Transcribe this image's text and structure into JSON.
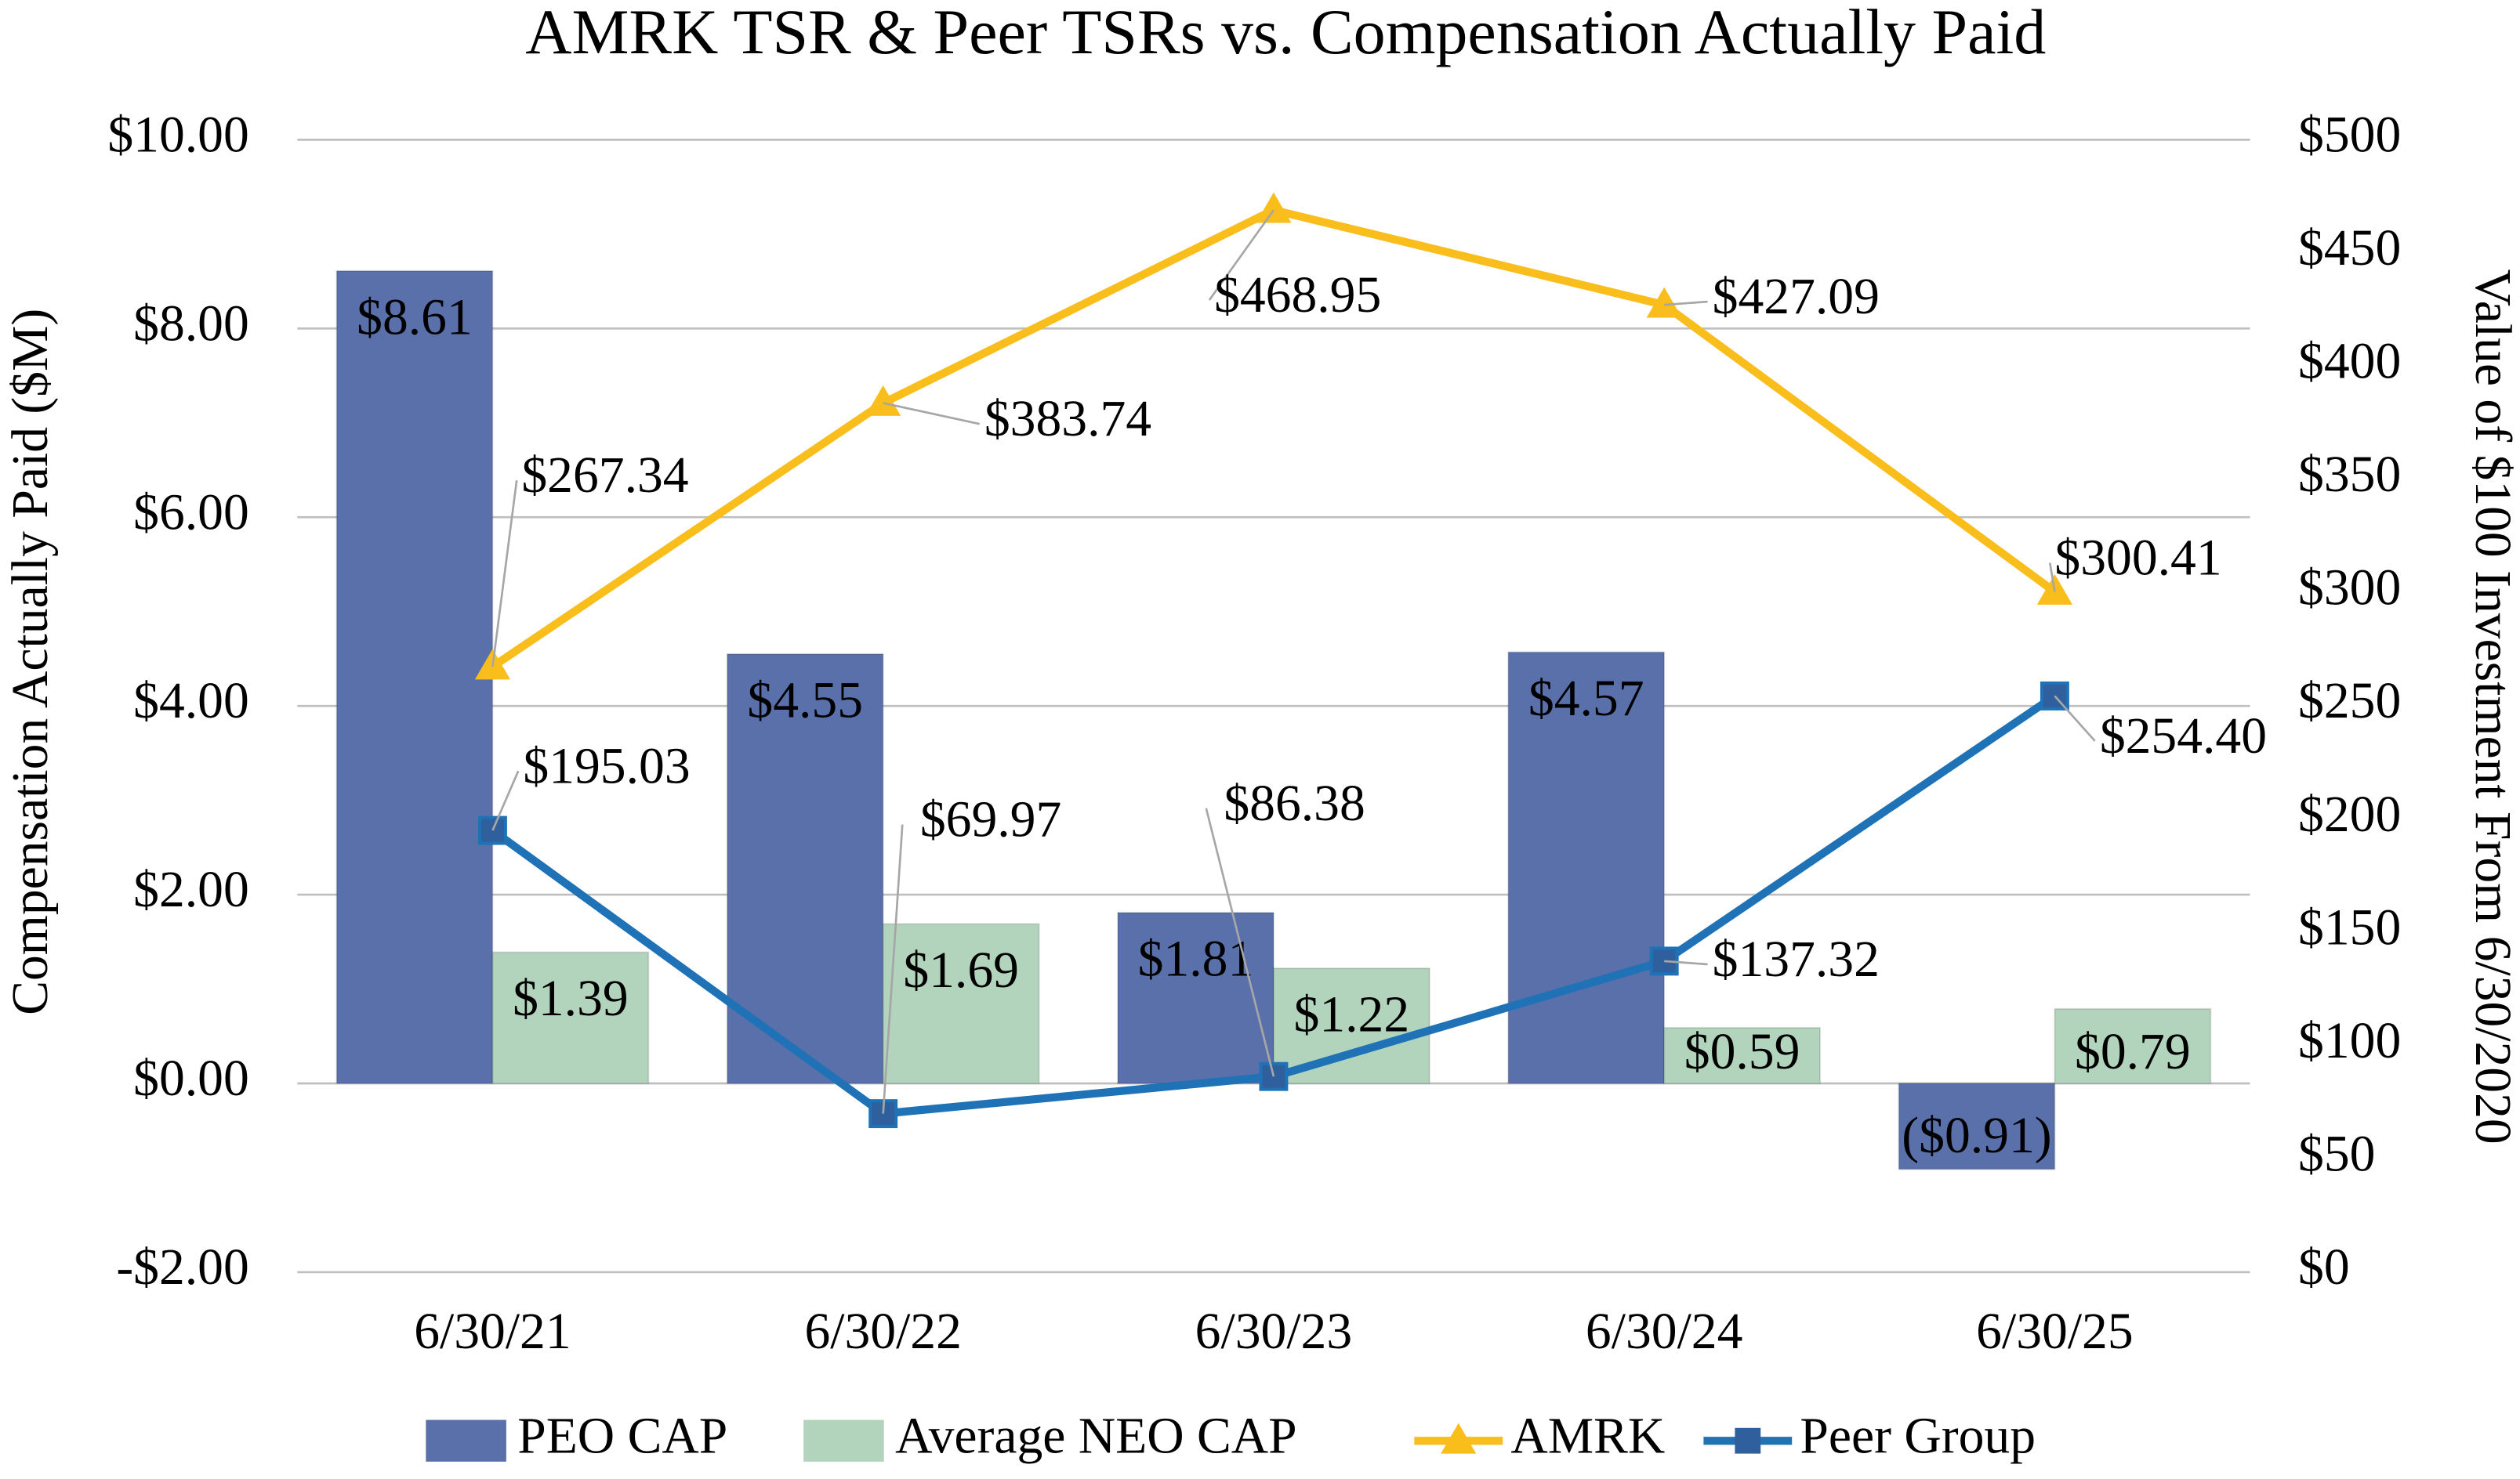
{
  "chart_data": {
    "type": "bar_line",
    "title": "AMRK TSR & Peer TSRs vs. Compensation Actually Paid",
    "ylabel": "Compensation Actually Paid ($M)",
    "y2label": "Value of $100 Investment From 6/30/2020",
    "categories": [
      "6/30/21",
      "6/30/22",
      "6/30/23",
      "6/30/24",
      "6/30/25"
    ],
    "ylim": [
      -2,
      10
    ],
    "yticks": [
      {
        "value": -2,
        "label": "-$2.00"
      },
      {
        "value": 0,
        "label": "$0.00"
      },
      {
        "value": 2,
        "label": "$2.00"
      },
      {
        "value": 4,
        "label": "$4.00"
      },
      {
        "value": 6,
        "label": "$6.00"
      },
      {
        "value": 8,
        "label": "$8.00"
      },
      {
        "value": 10,
        "label": "$10.00"
      }
    ],
    "y2lim": [
      0,
      500
    ],
    "y2ticks": [
      {
        "value": 0,
        "label": "$0"
      },
      {
        "value": 50,
        "label": "$50"
      },
      {
        "value": 100,
        "label": "$100"
      },
      {
        "value": 150,
        "label": "$150"
      },
      {
        "value": 200,
        "label": "$200"
      },
      {
        "value": 250,
        "label": "$250"
      },
      {
        "value": 300,
        "label": "$300"
      },
      {
        "value": 350,
        "label": "$350"
      },
      {
        "value": 400,
        "label": "$400"
      },
      {
        "value": 450,
        "label": "$450"
      },
      {
        "value": 500,
        "label": "$500"
      }
    ],
    "grid": true,
    "negative_label_color": "#e0262a",
    "series": [
      {
        "name": "PEO CAP",
        "kind": "bar",
        "color": "#5a70aa",
        "values": [
          8.61,
          4.55,
          1.81,
          4.57,
          -0.91
        ],
        "value_labels": [
          "$8.61",
          "$4.55",
          "$1.81",
          "$4.57",
          "($0.91)"
        ]
      },
      {
        "name": "Average NEO CAP",
        "kind": "bar",
        "color": "#b2d3bc",
        "values": [
          1.39,
          1.69,
          1.22,
          0.59,
          0.79
        ],
        "value_labels": [
          "$1.39",
          "$1.69",
          "$1.22",
          "$0.59",
          "$0.79"
        ]
      },
      {
        "name": "AMRK",
        "kind": "line",
        "marker": "triangle",
        "axis": "y2",
        "color": "#f9bd1c",
        "values": [
          267.34,
          383.74,
          468.95,
          427.09,
          300.41
        ],
        "value_labels": [
          "$267.34",
          "$383.74",
          "$468.95",
          "$427.09",
          "$300.41"
        ]
      },
      {
        "name": "Peer Group",
        "kind": "line",
        "marker": "square",
        "axis": "y2",
        "color": "#1f72b6",
        "values": [
          195.03,
          69.97,
          86.38,
          137.32,
          254.4
        ],
        "value_labels": [
          "$195.03",
          "$69.97",
          "$86.38",
          "$137.32",
          "$254.40"
        ]
      }
    ]
  }
}
